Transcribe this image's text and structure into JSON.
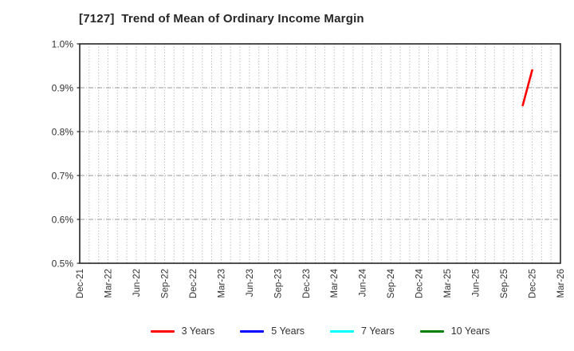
{
  "chart_data": {
    "type": "line",
    "title": "[7127]  Trend of Mean of Ordinary Income Margin",
    "x_tick_labels": [
      "Dec-21",
      "Mar-22",
      "Jun-22",
      "Sep-22",
      "Dec-22",
      "Mar-23",
      "Jun-23",
      "Sep-23",
      "Dec-23",
      "Mar-24",
      "Jun-24",
      "Sep-24",
      "Dec-24",
      "Mar-25",
      "Jun-25",
      "Sep-25",
      "Dec-25",
      "Mar-26"
    ],
    "months_per_x_tick": 3,
    "x_total_months": 51,
    "y_tick_labels": [
      "0.5%",
      "0.6%",
      "0.7%",
      "0.8%",
      "0.9%",
      "1.0%"
    ],
    "ylim": [
      0.5,
      1.0
    ],
    "y_tick_step": 0.1,
    "y_grid_values": [
      0.6,
      0.7,
      0.8,
      0.9
    ],
    "grid": true,
    "legend_position": "bottom",
    "ylabel": "",
    "xlabel": "",
    "series": [
      {
        "name": "3 Years",
        "color": "#ff0000",
        "points": [
          {
            "month_label": "Nov-25",
            "month_index": 47,
            "value": 0.86
          },
          {
            "month_label": "Dec-25",
            "month_index": 48,
            "value": 0.94
          }
        ]
      },
      {
        "name": "5 Years",
        "color": "#0000ff",
        "points": []
      },
      {
        "name": "7 Years",
        "color": "#00ffff",
        "points": []
      },
      {
        "name": "10 Years",
        "color": "#008000",
        "points": []
      }
    ]
  },
  "colors": {
    "background": "#ffffff",
    "axis": "#262626",
    "grid_vertical": "#a6a6a6",
    "grid_horizontal": "#999999",
    "title_text": "#262626",
    "tick_text": "#333333"
  }
}
